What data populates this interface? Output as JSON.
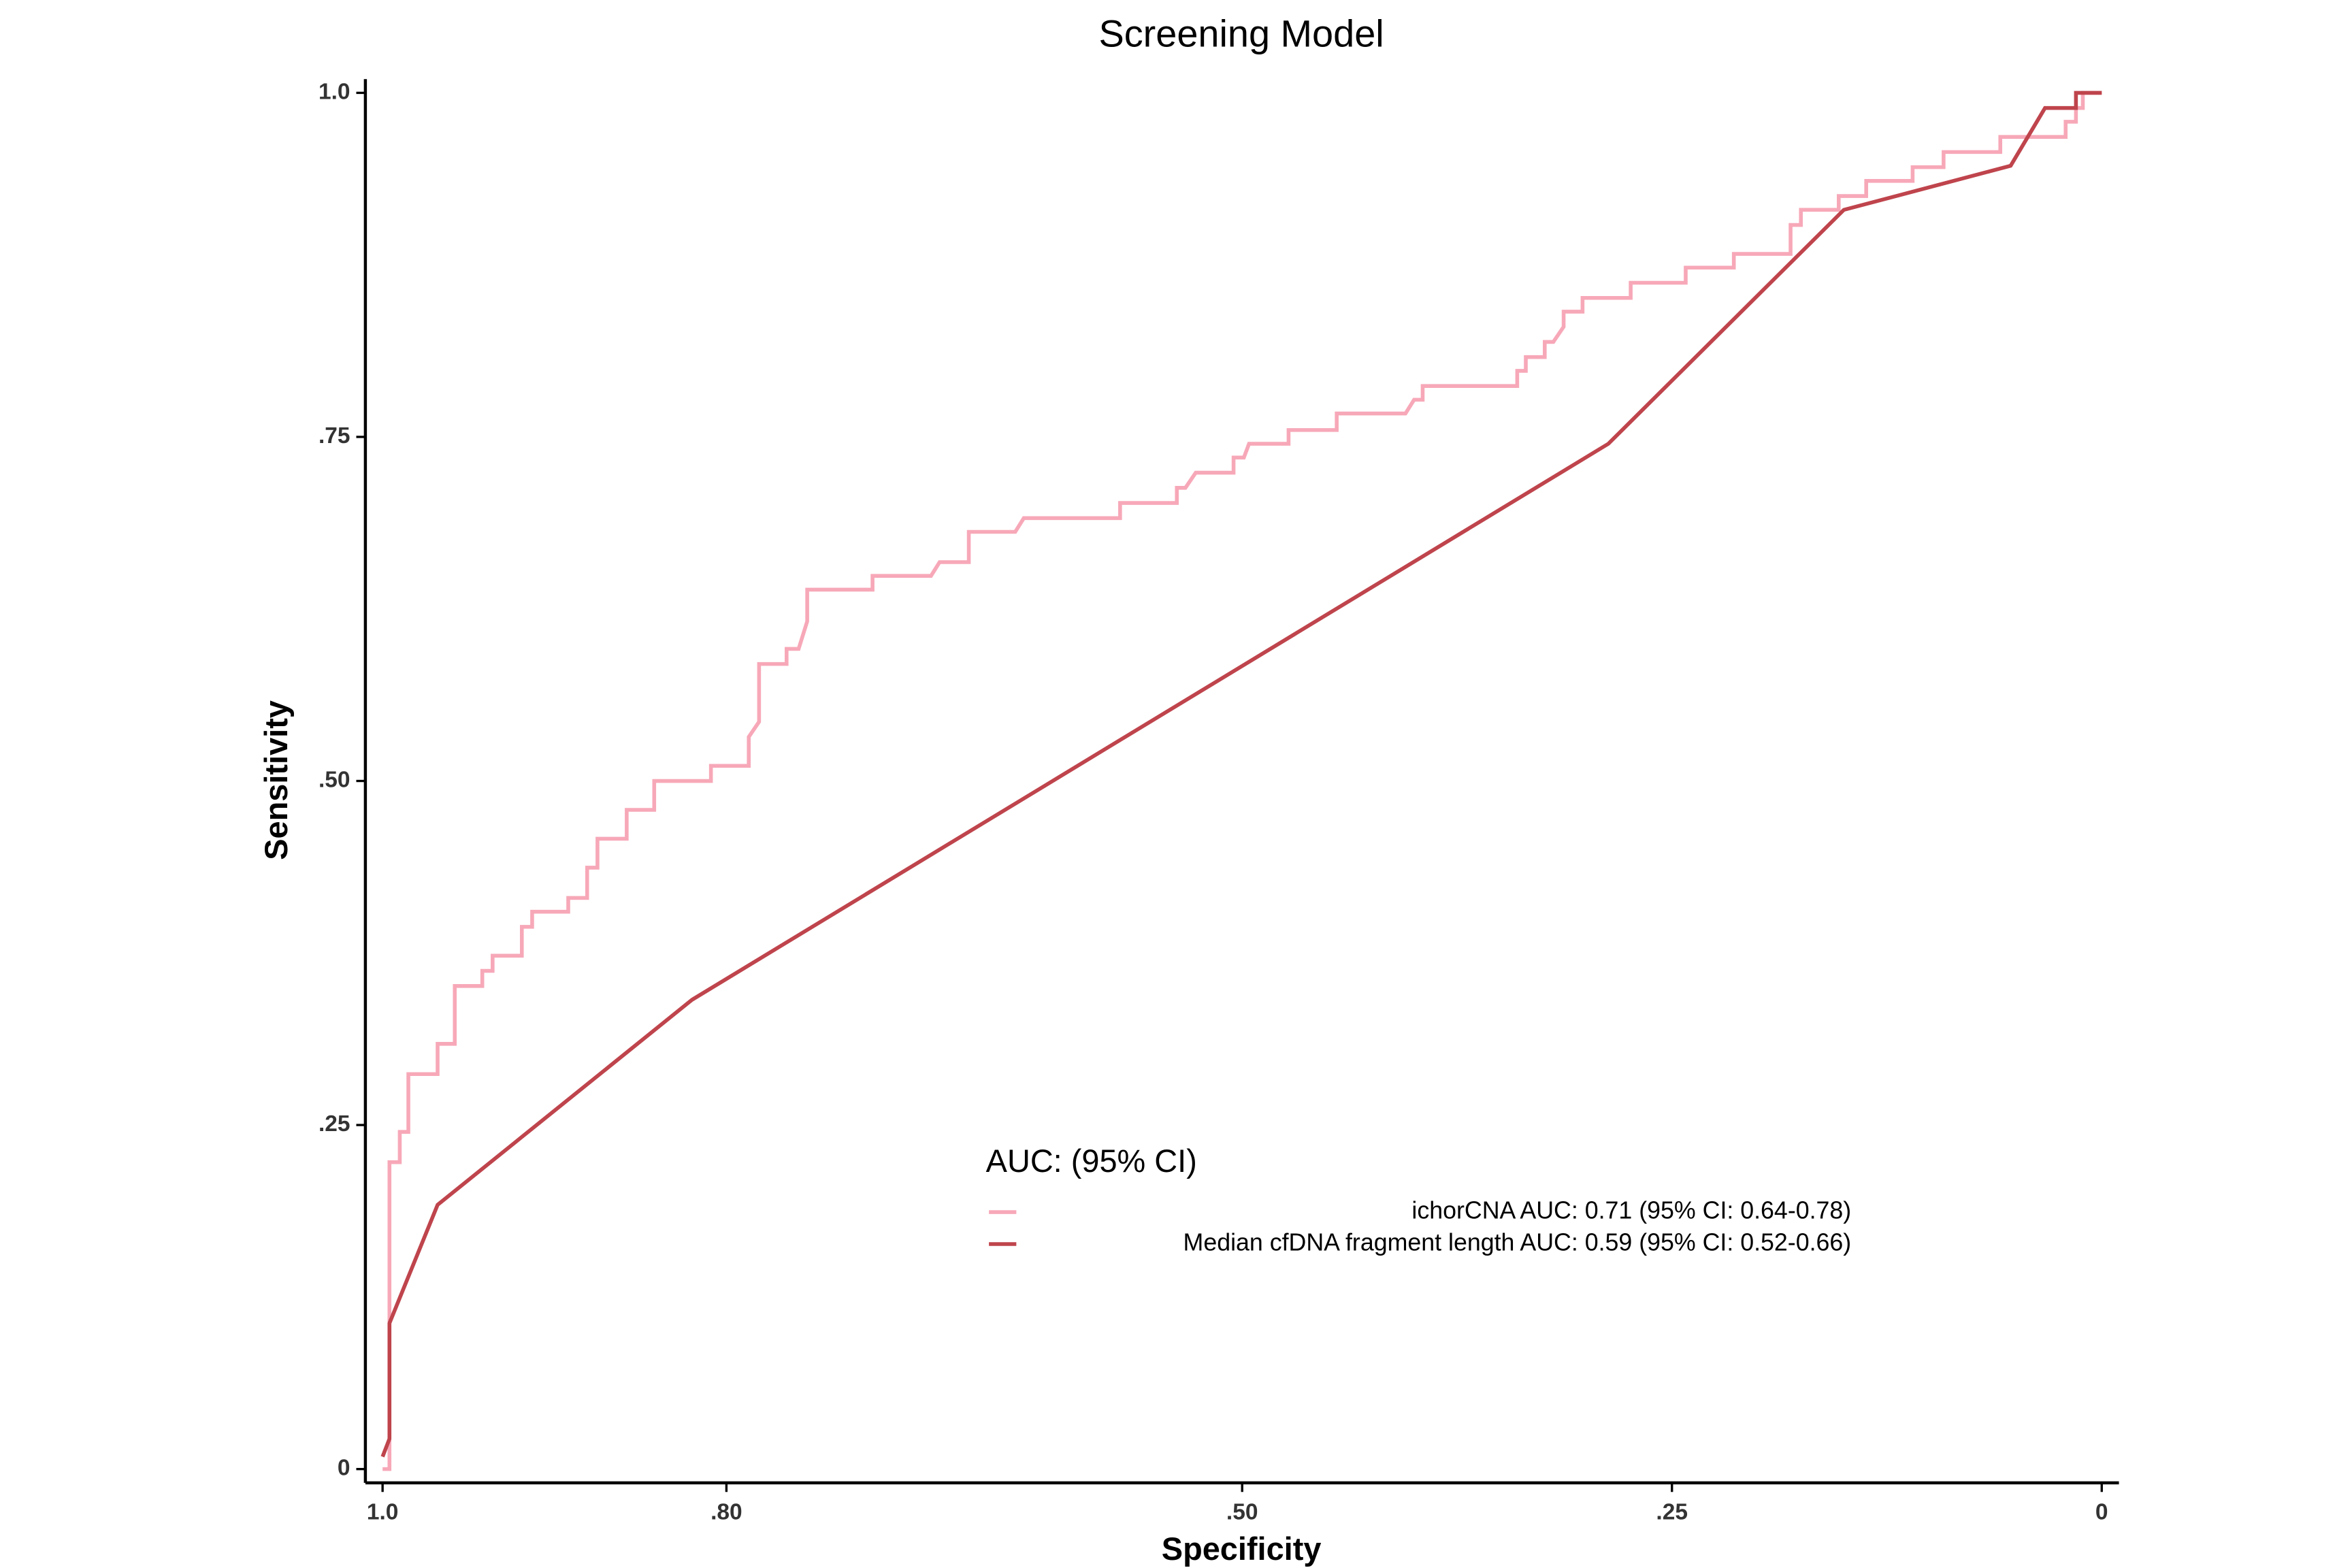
{
  "chart_data": {
    "type": "line",
    "title": "Screening Model",
    "x_label": "Specificity",
    "y_label": "Sensitivity",
    "legend_title": "AUC: (95% CI)",
    "xlim": [
      1.01,
      -0.01
    ],
    "ylim": [
      -0.01,
      1.01
    ],
    "xticks": [
      {
        "value": 1.0,
        "label": "1.0"
      },
      {
        "value": 0.8,
        "label": ".80"
      },
      {
        "value": 0.5,
        "label": ".50"
      },
      {
        "value": 0.25,
        "label": ".25"
      },
      0
    ],
    "yticks": [
      0,
      {
        "value": 0.25,
        "label": ".25"
      },
      {
        "value": 0.5,
        "label": ".50"
      },
      {
        "value": 0.75,
        "label": ".75"
      },
      {
        "value": 1.0,
        "label": "1.0"
      }
    ],
    "grid": false,
    "series": [
      {
        "name": "ichorCNA AUC: 0.71 (95% CI: 0.64-0.78)",
        "color": "#f7a8b8",
        "x": [
          1.0,
          0.996,
          0.996,
          0.99,
          0.99,
          0.985,
          0.985,
          0.968,
          0.968,
          0.958,
          0.958,
          0.942,
          0.942,
          0.936,
          0.936,
          0.919,
          0.919,
          0.913,
          0.913,
          0.892,
          0.892,
          0.881,
          0.881,
          0.875,
          0.875,
          0.858,
          0.858,
          0.842,
          0.842,
          0.809,
          0.809,
          0.787,
          0.787,
          0.781,
          0.781,
          0.765,
          0.765,
          0.758,
          0.753,
          0.753,
          0.715,
          0.715,
          0.681,
          0.676,
          0.659,
          0.659,
          0.632,
          0.627,
          0.571,
          0.571,
          0.538,
          0.538,
          0.533,
          0.527,
          0.505,
          0.505,
          0.499,
          0.496,
          0.473,
          0.473,
          0.445,
          0.445,
          0.405,
          0.4,
          0.395,
          0.395,
          0.34,
          0.34,
          0.335,
          0.335,
          0.324,
          0.324,
          0.319,
          0.313,
          0.313,
          0.302,
          0.302,
          0.274,
          0.274,
          0.242,
          0.242,
          0.214,
          0.214,
          0.181,
          0.181,
          0.175,
          0.175,
          0.153,
          0.153,
          0.137,
          0.137,
          0.11,
          0.11,
          0.092,
          0.092,
          0.059,
          0.059,
          0.021,
          0.021,
          0.015,
          0.015,
          0.011,
          0.011,
          0
        ],
        "values": [
          0,
          0,
          0.223,
          0.223,
          0.245,
          0.245,
          0.287,
          0.287,
          0.309,
          0.309,
          0.351,
          0.351,
          0.362,
          0.362,
          0.373,
          0.373,
          0.394,
          0.394,
          0.405,
          0.405,
          0.415,
          0.415,
          0.437,
          0.437,
          0.458,
          0.458,
          0.479,
          0.479,
          0.5,
          0.5,
          0.511,
          0.511,
          0.532,
          0.543,
          0.585,
          0.585,
          0.596,
          0.596,
          0.616,
          0.639,
          0.639,
          0.649,
          0.649,
          0.659,
          0.659,
          0.681,
          0.681,
          0.691,
          0.691,
          0.702,
          0.702,
          0.713,
          0.713,
          0.724,
          0.724,
          0.735,
          0.735,
          0.745,
          0.745,
          0.755,
          0.755,
          0.767,
          0.767,
          0.777,
          0.777,
          0.787,
          0.787,
          0.798,
          0.798,
          0.808,
          0.808,
          0.819,
          0.819,
          0.83,
          0.841,
          0.841,
          0.851,
          0.851,
          0.862,
          0.862,
          0.873,
          0.873,
          0.883,
          0.883,
          0.904,
          0.904,
          0.915,
          0.915,
          0.925,
          0.925,
          0.936,
          0.936,
          0.946,
          0.946,
          0.957,
          0.957,
          0.968,
          0.968,
          0.979,
          0.979,
          0.989,
          0.989,
          1.0,
          1.0
        ]
      },
      {
        "name": "Median cfDNA fragment length AUC: 0.59 (95% CI: 0.52-0.66)",
        "color": "#bf444c",
        "x": [
          1.0,
          0.996,
          0.996,
          0.968,
          0.82,
          0.287,
          0.15,
          0.053,
          0.033,
          0.015,
          0.015,
          0
        ],
        "values": [
          0.009,
          0.022,
          0.106,
          0.192,
          0.341,
          0.745,
          0.915,
          0.947,
          0.989,
          0.989,
          1.0,
          1.0
        ]
      }
    ]
  }
}
